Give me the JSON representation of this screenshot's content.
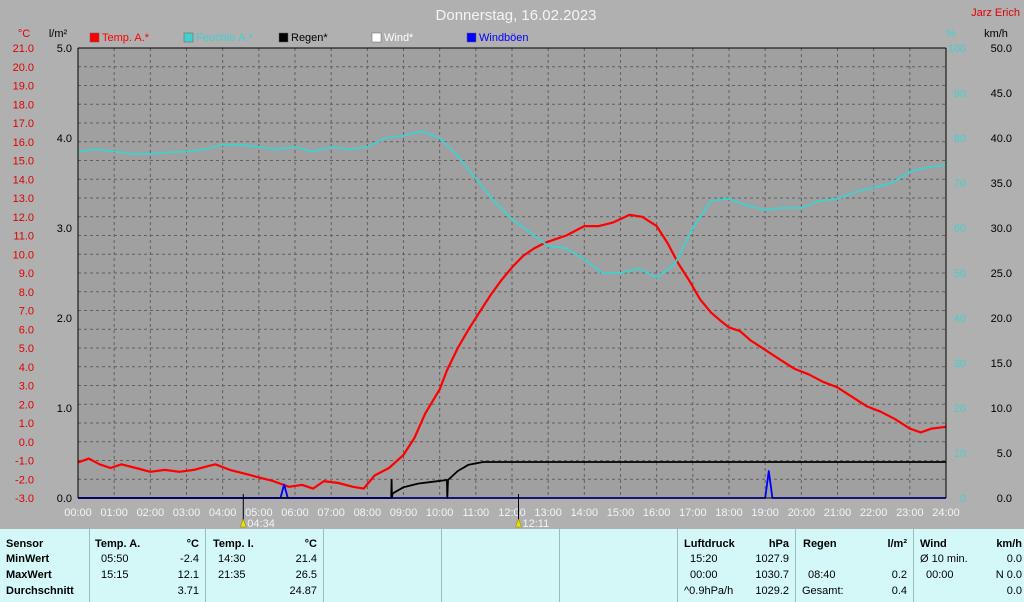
{
  "header": {
    "title": "Donnerstag, 16.02.2023",
    "author": "Jarz Erich"
  },
  "units": {
    "temp": "°C",
    "rain": "l/m²",
    "humidity": "%",
    "wind": "km/h"
  },
  "legend": [
    {
      "label": "Temp. A.*",
      "color": "#ff0000"
    },
    {
      "label": "Feuchte A.*",
      "color": "#40d0d0"
    },
    {
      "label": "Regen*",
      "color": "#000000"
    },
    {
      "label": "Wind*",
      "color": "#ffffff"
    },
    {
      "label": "Windböen",
      "color": "#0000ff"
    }
  ],
  "chart_data": {
    "type": "line",
    "x_ticks": [
      "00:00",
      "01:00",
      "02:00",
      "03:00",
      "04:00",
      "05:00",
      "06:00",
      "07:00",
      "08:00",
      "09:00",
      "10:00",
      "11:00",
      "12:00",
      "13:00",
      "14:00",
      "15:00",
      "16:00",
      "17:00",
      "18:00",
      "19:00",
      "20:00",
      "21:00",
      "22:00",
      "23:00",
      "24:00"
    ],
    "temp_axis": {
      "min": -3.0,
      "max": 21.0,
      "ticks": [
        "21.0",
        "20.0",
        "19.0",
        "18.0",
        "17.0",
        "16.0",
        "15.0",
        "14.0",
        "13.0",
        "12.0",
        "11.0",
        "10.0",
        "9.0",
        "8.0",
        "7.0",
        "6.0",
        "5.0",
        "4.0",
        "3.0",
        "2.0",
        "1.0",
        "0.0",
        "-1.0",
        "-2.0",
        "-3.0"
      ]
    },
    "rain_axis": {
      "min": 0.0,
      "max": 5.0,
      "ticks": [
        "5.0",
        "4.0",
        "3.0",
        "2.0",
        "1.0",
        "0.0"
      ]
    },
    "humidity_axis": {
      "min": 0,
      "max": 100,
      "ticks": [
        "100",
        "90",
        "80",
        "70",
        "60",
        "50",
        "40",
        "30",
        "20",
        "10",
        "0"
      ]
    },
    "wind_axis": {
      "min": 0.0,
      "max": 50.0,
      "ticks": [
        "50.0",
        "45.0",
        "40.0",
        "35.0",
        "30.0",
        "25.0",
        "20.0",
        "15.0",
        "10.0",
        "5.0",
        "0.0"
      ]
    },
    "sun_markers": [
      {
        "label": "04:34",
        "hour": 4.57
      },
      {
        "label": "12:11",
        "hour": 12.18
      }
    ],
    "series": [
      {
        "name": "Temp. A.*",
        "axis": "temp",
        "color": "#ff0000",
        "points": [
          [
            0,
            -1.1
          ],
          [
            0.3,
            -0.9
          ],
          [
            0.6,
            -1.2
          ],
          [
            0.9,
            -1.4
          ],
          [
            1.2,
            -1.2
          ],
          [
            1.6,
            -1.4
          ],
          [
            2.0,
            -1.6
          ],
          [
            2.4,
            -1.5
          ],
          [
            2.8,
            -1.6
          ],
          [
            3.2,
            -1.5
          ],
          [
            3.6,
            -1.3
          ],
          [
            3.8,
            -1.2
          ],
          [
            4.2,
            -1.5
          ],
          [
            4.6,
            -1.7
          ],
          [
            5.0,
            -1.9
          ],
          [
            5.4,
            -2.1
          ],
          [
            5.83,
            -2.4
          ],
          [
            6.2,
            -2.3
          ],
          [
            6.5,
            -2.5
          ],
          [
            6.8,
            -2.1
          ],
          [
            7.2,
            -2.2
          ],
          [
            7.6,
            -2.4
          ],
          [
            7.9,
            -2.5
          ],
          [
            8.2,
            -1.8
          ],
          [
            8.6,
            -1.4
          ],
          [
            9.0,
            -0.7
          ],
          [
            9.3,
            0.2
          ],
          [
            9.6,
            1.5
          ],
          [
            10.0,
            2.8
          ],
          [
            10.2,
            3.8
          ],
          [
            10.5,
            5.0
          ],
          [
            10.8,
            6.0
          ],
          [
            11.1,
            6.9
          ],
          [
            11.4,
            7.8
          ],
          [
            11.7,
            8.6
          ],
          [
            12.0,
            9.3
          ],
          [
            12.3,
            9.9
          ],
          [
            12.6,
            10.3
          ],
          [
            12.9,
            10.6
          ],
          [
            13.2,
            10.8
          ],
          [
            13.5,
            11.0
          ],
          [
            13.8,
            11.3
          ],
          [
            14.0,
            11.5
          ],
          [
            14.4,
            11.5
          ],
          [
            14.8,
            11.7
          ],
          [
            15.25,
            12.1
          ],
          [
            15.6,
            12.0
          ],
          [
            16.0,
            11.5
          ],
          [
            16.3,
            10.6
          ],
          [
            16.6,
            9.5
          ],
          [
            16.9,
            8.6
          ],
          [
            17.2,
            7.6
          ],
          [
            17.5,
            6.9
          ],
          [
            17.8,
            6.4
          ],
          [
            18.0,
            6.1
          ],
          [
            18.3,
            5.9
          ],
          [
            18.6,
            5.4
          ],
          [
            19.0,
            4.9
          ],
          [
            19.4,
            4.4
          ],
          [
            19.8,
            3.9
          ],
          [
            20.2,
            3.6
          ],
          [
            20.6,
            3.2
          ],
          [
            21.0,
            2.9
          ],
          [
            21.4,
            2.4
          ],
          [
            21.8,
            1.9
          ],
          [
            22.2,
            1.6
          ],
          [
            22.6,
            1.2
          ],
          [
            23.0,
            0.7
          ],
          [
            23.3,
            0.5
          ],
          [
            23.6,
            0.7
          ],
          [
            24.0,
            0.8
          ]
        ]
      },
      {
        "name": "Feuchte A.*",
        "axis": "humidity",
        "color": "#40d0d0",
        "points": [
          [
            0,
            77
          ],
          [
            0.5,
            77.5
          ],
          [
            1.0,
            77
          ],
          [
            1.5,
            76.5
          ],
          [
            2.0,
            76.5
          ],
          [
            2.5,
            76.8
          ],
          [
            3.0,
            77
          ],
          [
            3.5,
            77.5
          ],
          [
            4.0,
            78.5
          ],
          [
            4.5,
            78.5
          ],
          [
            5.0,
            78
          ],
          [
            5.5,
            77.5
          ],
          [
            6.0,
            78
          ],
          [
            6.5,
            77
          ],
          [
            7.0,
            78
          ],
          [
            7.5,
            77.5
          ],
          [
            8.0,
            78
          ],
          [
            8.5,
            80
          ],
          [
            9.0,
            80.5
          ],
          [
            9.5,
            81.5
          ],
          [
            10.0,
            80
          ],
          [
            10.5,
            76
          ],
          [
            11.0,
            71
          ],
          [
            11.5,
            66
          ],
          [
            12.0,
            62
          ],
          [
            12.5,
            59
          ],
          [
            13.0,
            56
          ],
          [
            13.5,
            55.5
          ],
          [
            14.0,
            53
          ],
          [
            14.5,
            50
          ],
          [
            15.0,
            50
          ],
          [
            15.5,
            51
          ],
          [
            16.0,
            49
          ],
          [
            16.5,
            52
          ],
          [
            17.0,
            60
          ],
          [
            17.5,
            66
          ],
          [
            18.0,
            66.5
          ],
          [
            18.5,
            65
          ],
          [
            19.0,
            64
          ],
          [
            19.5,
            64.5
          ],
          [
            20.0,
            64.5
          ],
          [
            20.5,
            66
          ],
          [
            21.0,
            66.5
          ],
          [
            21.5,
            68
          ],
          [
            22.0,
            69
          ],
          [
            22.5,
            70
          ],
          [
            23.0,
            72.5
          ],
          [
            23.5,
            73.5
          ],
          [
            24.0,
            74
          ]
        ]
      },
      {
        "name": "Regen*",
        "axis": "rain",
        "color": "#000000",
        "points": [
          [
            0,
            0
          ],
          [
            8.66,
            0
          ],
          [
            8.67,
            0.2
          ],
          [
            8.68,
            0
          ],
          [
            8.7,
            0.05
          ],
          [
            9.0,
            0.12
          ],
          [
            9.4,
            0.16
          ],
          [
            9.8,
            0.18
          ],
          [
            10.2,
            0.2
          ],
          [
            10.21,
            0
          ],
          [
            10.23,
            0.2
          ],
          [
            10.5,
            0.3
          ],
          [
            10.8,
            0.37
          ],
          [
            11.2,
            0.4
          ],
          [
            12.0,
            0.4
          ],
          [
            24.0,
            0.4
          ]
        ]
      },
      {
        "name": "Windböen",
        "axis": "wind",
        "color": "#0000ff",
        "points": [
          [
            0,
            0
          ],
          [
            5.6,
            0
          ],
          [
            5.7,
            1.5
          ],
          [
            5.8,
            0
          ],
          [
            19.0,
            0
          ],
          [
            19.1,
            3.0
          ],
          [
            19.2,
            0
          ],
          [
            24.0,
            0
          ]
        ]
      }
    ]
  },
  "stats": {
    "sensor": {
      "header": "Sensor",
      "rows": [
        "MinWert",
        "MaxWert",
        "Durchschnitt"
      ]
    },
    "temp_a": {
      "header": "Temp. A.",
      "unit": "°C",
      "min_time": "05:50",
      "min": "-2.4",
      "max_time": "15:15",
      "max": "12.1",
      "avg": "3.71"
    },
    "temp_i": {
      "header": "Temp. I.",
      "unit": "°C",
      "min_time": "14:30",
      "min": "21.4",
      "max_time": "21:35",
      "max": "26.5",
      "avg": "24.87"
    },
    "pressure": {
      "header": "Luftdruck",
      "unit": "hPa",
      "min_time": "15:20",
      "min": "1027.9",
      "max_time": "00:00",
      "max": "1030.7",
      "trend_label": "^0.9hPa/h",
      "trend_value": "1029.2"
    },
    "rain": {
      "header": "Regen",
      "unit": "l/m²",
      "row2_time": "08:40",
      "row2_value": "0.2",
      "total_label": "Gesamt:",
      "total": "0.4"
    },
    "wind": {
      "header": "Wind",
      "unit": "km/h",
      "row1_label": "Ø 10 min.",
      "row1_value": "0.0",
      "row2_time": "00:00",
      "row2_value": "N 0.0",
      "row3_value": "0.0"
    }
  }
}
